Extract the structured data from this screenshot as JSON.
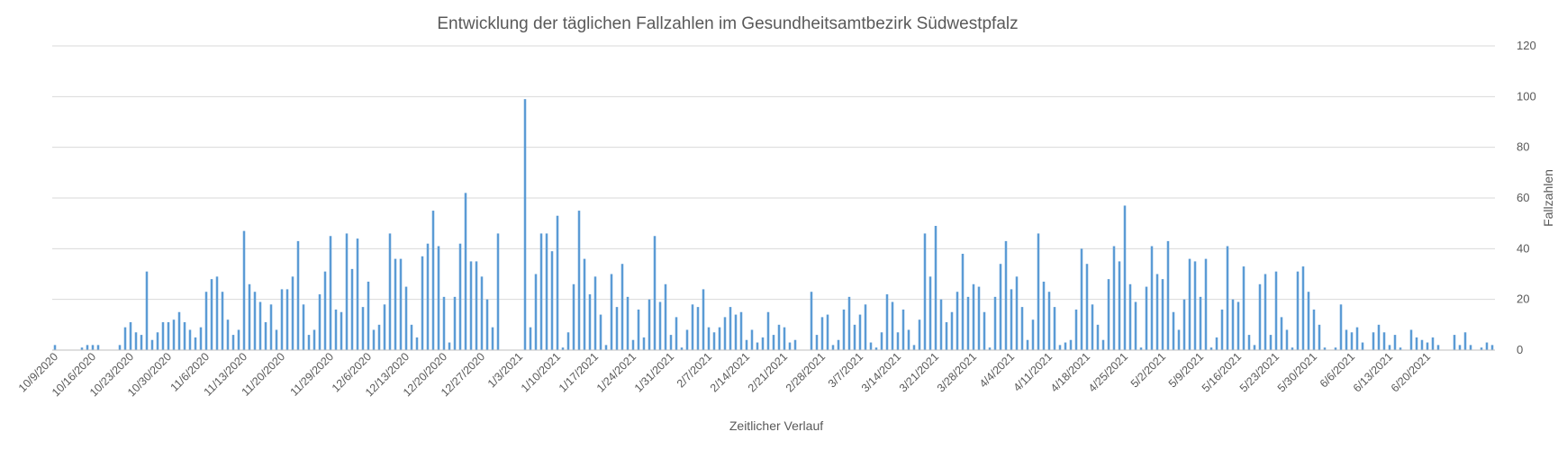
{
  "chart_data": {
    "type": "bar",
    "title": "Entwicklung der täglichen Fallzahlen im Gesundheitsamtbezirk Südwestpfalz",
    "xlabel": "Zeitlicher Verlauf",
    "ylabel": "Fallzahlen",
    "ylim": [
      0,
      120
    ],
    "yticks": [
      0,
      20,
      40,
      60,
      80,
      100,
      120
    ],
    "y_axis_side": "right",
    "grid": true,
    "legend": "none",
    "bar_color": "#5b9bd5",
    "start_date": "2020-10-09",
    "x_tick_labels": [
      "10/9/2020",
      "10/16/2020",
      "10/23/2020",
      "10/30/2020",
      "11/6/2020",
      "11/13/2020",
      "11/20/2020",
      "11/29/2020",
      "12/6/2020",
      "12/13/2020",
      "12/20/2020",
      "12/27/2020",
      "1/3/2021",
      "1/10/2021",
      "1/17/2021",
      "1/24/2021",
      "1/31/2021",
      "2/7/2021",
      "2/14/2021",
      "2/21/2021",
      "2/28/2021",
      "3/7/2021",
      "3/14/2021",
      "3/21/2021",
      "3/28/2021",
      "4/4/2021",
      "4/11/2021",
      "4/18/2021",
      "4/25/2021",
      "5/2/2021",
      "5/9/2021",
      "5/16/2021",
      "5/23/2021",
      "5/30/2021",
      "6/6/2021",
      "6/13/2021",
      "6/20/2021"
    ],
    "values": [
      2,
      0,
      0,
      0,
      0,
      1,
      2,
      2,
      2,
      0,
      0,
      0,
      2,
      9,
      11,
      7,
      6,
      31,
      4,
      7,
      11,
      11,
      12,
      15,
      11,
      8,
      5,
      9,
      23,
      28,
      29,
      23,
      12,
      6,
      8,
      47,
      26,
      23,
      19,
      11,
      18,
      8,
      24,
      24,
      29,
      43,
      18,
      6,
      8,
      22,
      31,
      45,
      16,
      15,
      46,
      32,
      44,
      17,
      27,
      8,
      10,
      18,
      46,
      36,
      36,
      25,
      10,
      5,
      37,
      42,
      55,
      41,
      21,
      3,
      21,
      42,
      62,
      35,
      35,
      29,
      20,
      9,
      46,
      0,
      0,
      0,
      0,
      99,
      9,
      30,
      46,
      46,
      39,
      53,
      1,
      7,
      26,
      55,
      36,
      22,
      29,
      14,
      2,
      30,
      17,
      34,
      21,
      4,
      16,
      5,
      20,
      45,
      19,
      26,
      6,
      13,
      1,
      8,
      18,
      17,
      24,
      9,
      7,
      9,
      13,
      17,
      14,
      15,
      4,
      8,
      3,
      5,
      15,
      6,
      10,
      9,
      3,
      4,
      0,
      0,
      23,
      6,
      13,
      14,
      2,
      4,
      16,
      21,
      10,
      14,
      18,
      3,
      1,
      7,
      22,
      19,
      7,
      16,
      8,
      2,
      12,
      46,
      29,
      49,
      20,
      11,
      15,
      23,
      38,
      21,
      26,
      25,
      15,
      1,
      21,
      34,
      43,
      24,
      29,
      17,
      4,
      12,
      46,
      27,
      23,
      17,
      2,
      3,
      4,
      16,
      40,
      34,
      18,
      10,
      4,
      28,
      41,
      35,
      57,
      26,
      19,
      1,
      25,
      41,
      30,
      28,
      43,
      15,
      8,
      20,
      36,
      35,
      21,
      36,
      1,
      5,
      16,
      41,
      20,
      19,
      33,
      6,
      2,
      26,
      30,
      6,
      31,
      13,
      8,
      1,
      31,
      33,
      23,
      16,
      10,
      1,
      0,
      1,
      18,
      8,
      7,
      9,
      3,
      0,
      7,
      10,
      7,
      2,
      6,
      1,
      0,
      8,
      5,
      4,
      3,
      5,
      2,
      0,
      0,
      6,
      2,
      7,
      2,
      0,
      1,
      3,
      2
    ]
  }
}
